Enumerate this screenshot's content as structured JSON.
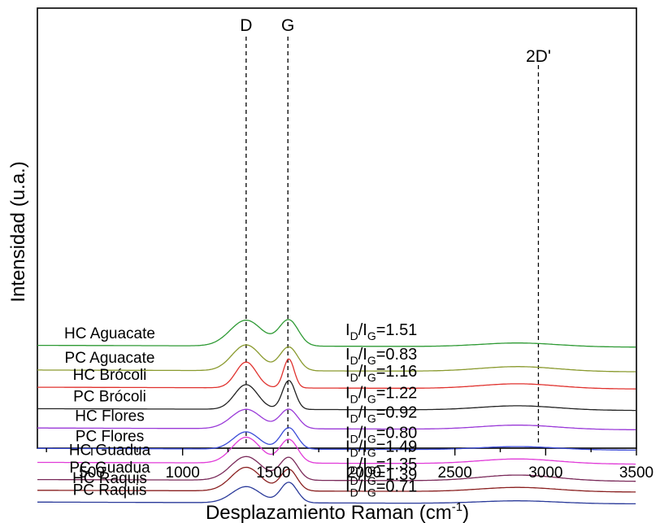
{
  "chart_data": {
    "type": "line",
    "title": "",
    "xlabel": "Desplazamiento Raman (cm",
    "xlabel_sup": "-1",
    "xlabel_suffix": ")",
    "ylabel": "Intensidad (u.a.)",
    "xlim": [
      200,
      3500
    ],
    "xticks": [
      "500",
      "1000",
      "1500",
      "2000",
      "2500",
      "3000",
      "3500"
    ],
    "xtick_values": [
      500,
      1000,
      1500,
      2000,
      2500,
      3000,
      3500
    ],
    "yticks": "none",
    "grid": false,
    "legend": "none",
    "reference_lines": [
      {
        "label": "D",
        "x": 1350
      },
      {
        "label": "G",
        "x": 1580
      },
      {
        "label": "2D'",
        "x": 2960
      }
    ],
    "series": [
      {
        "name": "HC Aguacate",
        "ratio": "1.51",
        "color": "#2e9a34",
        "base": 13.2,
        "d_height": 2.4,
        "g_height": 2.4,
        "d_width": 125,
        "g_width": 75,
        "band2": 0.35
      },
      {
        "name": "PC Aguacate",
        "ratio": "0.83",
        "color": "#8a9a2e",
        "base": 10.9,
        "d_height": 2.4,
        "g_height": 2.2,
        "d_width": 110,
        "g_width": 70,
        "band2": 0.45
      },
      {
        "name": "HC Brócoli",
        "ratio": "1.16",
        "color": "#e0322e",
        "base": 9.3,
        "d_height": 2.4,
        "g_height": 2.7,
        "d_width": 80,
        "g_width": 42,
        "band2": 0.45
      },
      {
        "name": "PC Brócoli",
        "ratio": "1.22",
        "color": "#222222",
        "base": 7.3,
        "d_height": 2.3,
        "g_height": 2.7,
        "d_width": 90,
        "g_width": 50,
        "band2": 0.4
      },
      {
        "name": "HC Flores",
        "ratio": "0.92",
        "color": "#9a3ad8",
        "base": 5.5,
        "d_height": 1.8,
        "g_height": 1.8,
        "d_width": 115,
        "g_width": 70,
        "band2": 0.4
      },
      {
        "name": "PC Flores",
        "ratio": "0.80",
        "color": "#3a4ad8",
        "base": 3.6,
        "d_height": 1.6,
        "g_height": 2.0,
        "d_width": 100,
        "g_width": 65,
        "band2": 0.3
      },
      {
        "name": "HC Guadua",
        "ratio": "1.49",
        "color": "#e03ad8",
        "base": 2.3,
        "d_height": 2.4,
        "g_height": 2.2,
        "d_width": 110,
        "g_width": 70,
        "band2": 0.45
      },
      {
        "name": "PC Guadua",
        "ratio": "1.35",
        "color": "#7a2a5a",
        "base": 0.7,
        "d_height": 2.2,
        "g_height": 2.1,
        "d_width": 120,
        "g_width": 70,
        "band2": 0.55
      },
      {
        "name": "HC Raquis",
        "ratio": "1.39",
        "color": "#8a2020",
        "base": -0.3,
        "d_height": 2.2,
        "g_height": 2.0,
        "d_width": 115,
        "g_width": 65,
        "band2": 0.4
      },
      {
        "name": "PC Raquis",
        "ratio": "0.71",
        "color": "#2a3a9a",
        "base": -1.4,
        "d_height": 1.5,
        "g_height": 1.9,
        "d_width": 110,
        "g_width": 65,
        "band2": 0.25
      }
    ]
  }
}
